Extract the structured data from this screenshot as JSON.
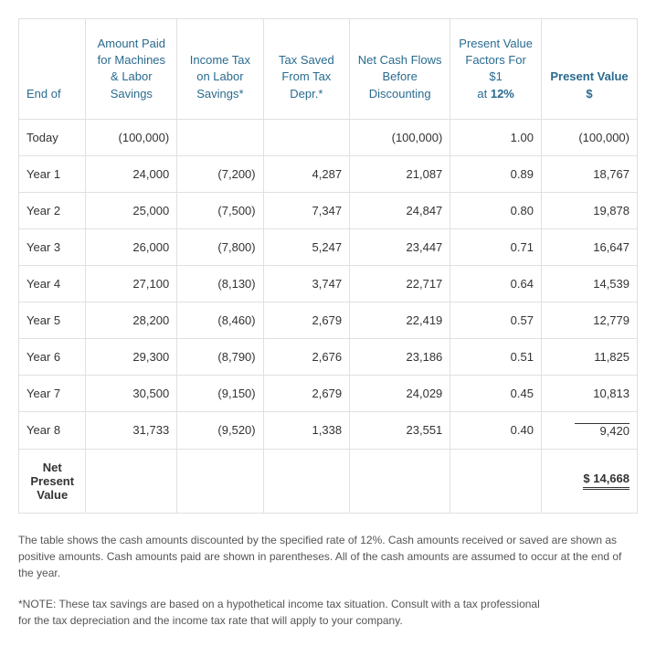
{
  "table": {
    "headers": {
      "c0": "End of",
      "c1": "Amount Paid for Machines & Labor Savings",
      "c2": "Income Tax on Labor Savings*",
      "c3": "Tax Saved From Tax Depr.*",
      "c4": "Net Cash Flows Before Discounting",
      "c5_line1": "Present Value Factors For $1",
      "c5_line2_prefix": "at ",
      "c5_line2_bold": "12%",
      "c6": "Present Value $"
    },
    "rows": [
      {
        "label": "Today",
        "c1": "(100,000)",
        "c2": "",
        "c3": "",
        "c4": "(100,000)",
        "c5": "1.00",
        "c6": "(100,000)"
      },
      {
        "label": "Year 1",
        "c1": "24,000",
        "c2": "(7,200)",
        "c3": "4,287",
        "c4": "21,087",
        "c5": "0.89",
        "c6": "18,767"
      },
      {
        "label": "Year 2",
        "c1": "25,000",
        "c2": "(7,500)",
        "c3": "7,347",
        "c4": "24,847",
        "c5": "0.80",
        "c6": "19,878"
      },
      {
        "label": "Year 3",
        "c1": "26,000",
        "c2": "(7,800)",
        "c3": "5,247",
        "c4": "23,447",
        "c5": "0.71",
        "c6": "16,647"
      },
      {
        "label": "Year 4",
        "c1": "27,100",
        "c2": "(8,130)",
        "c3": "3,747",
        "c4": "22,717",
        "c5": "0.64",
        "c6": "14,539"
      },
      {
        "label": "Year 5",
        "c1": "28,200",
        "c2": "(8,460)",
        "c3": "2,679",
        "c4": "22,419",
        "c5": "0.57",
        "c6": "12,779"
      },
      {
        "label": "Year 6",
        "c1": "29,300",
        "c2": "(8,790)",
        "c3": "2,676",
        "c4": "23,186",
        "c5": "0.51",
        "c6": "11,825"
      },
      {
        "label": "Year 7",
        "c1": "30,500",
        "c2": "(9,150)",
        "c3": "2,679",
        "c4": "24,029",
        "c5": "0.45",
        "c6": "10,813"
      },
      {
        "label": "Year 8",
        "c1": "31,733",
        "c2": "(9,520)",
        "c3": "1,338",
        "c4": "23,551",
        "c5": "0.40",
        "c6": "9,420"
      }
    ],
    "final": {
      "label": "Net Present Value",
      "value": "$ 14,668"
    }
  },
  "notes": {
    "p1": "The table shows the cash amounts discounted by the specified rate of 12%. Cash amounts received or saved are shown as positive amounts. Cash amounts paid are shown in parentheses. All of the cash amounts are assumed to occur at the end of the year.",
    "p2a": "*NOTE: These tax savings are based on a hypothetical income tax situation. Consult with a tax professional",
    "p2b": "  for the tax depreciation and the income tax rate that will apply to your company."
  }
}
